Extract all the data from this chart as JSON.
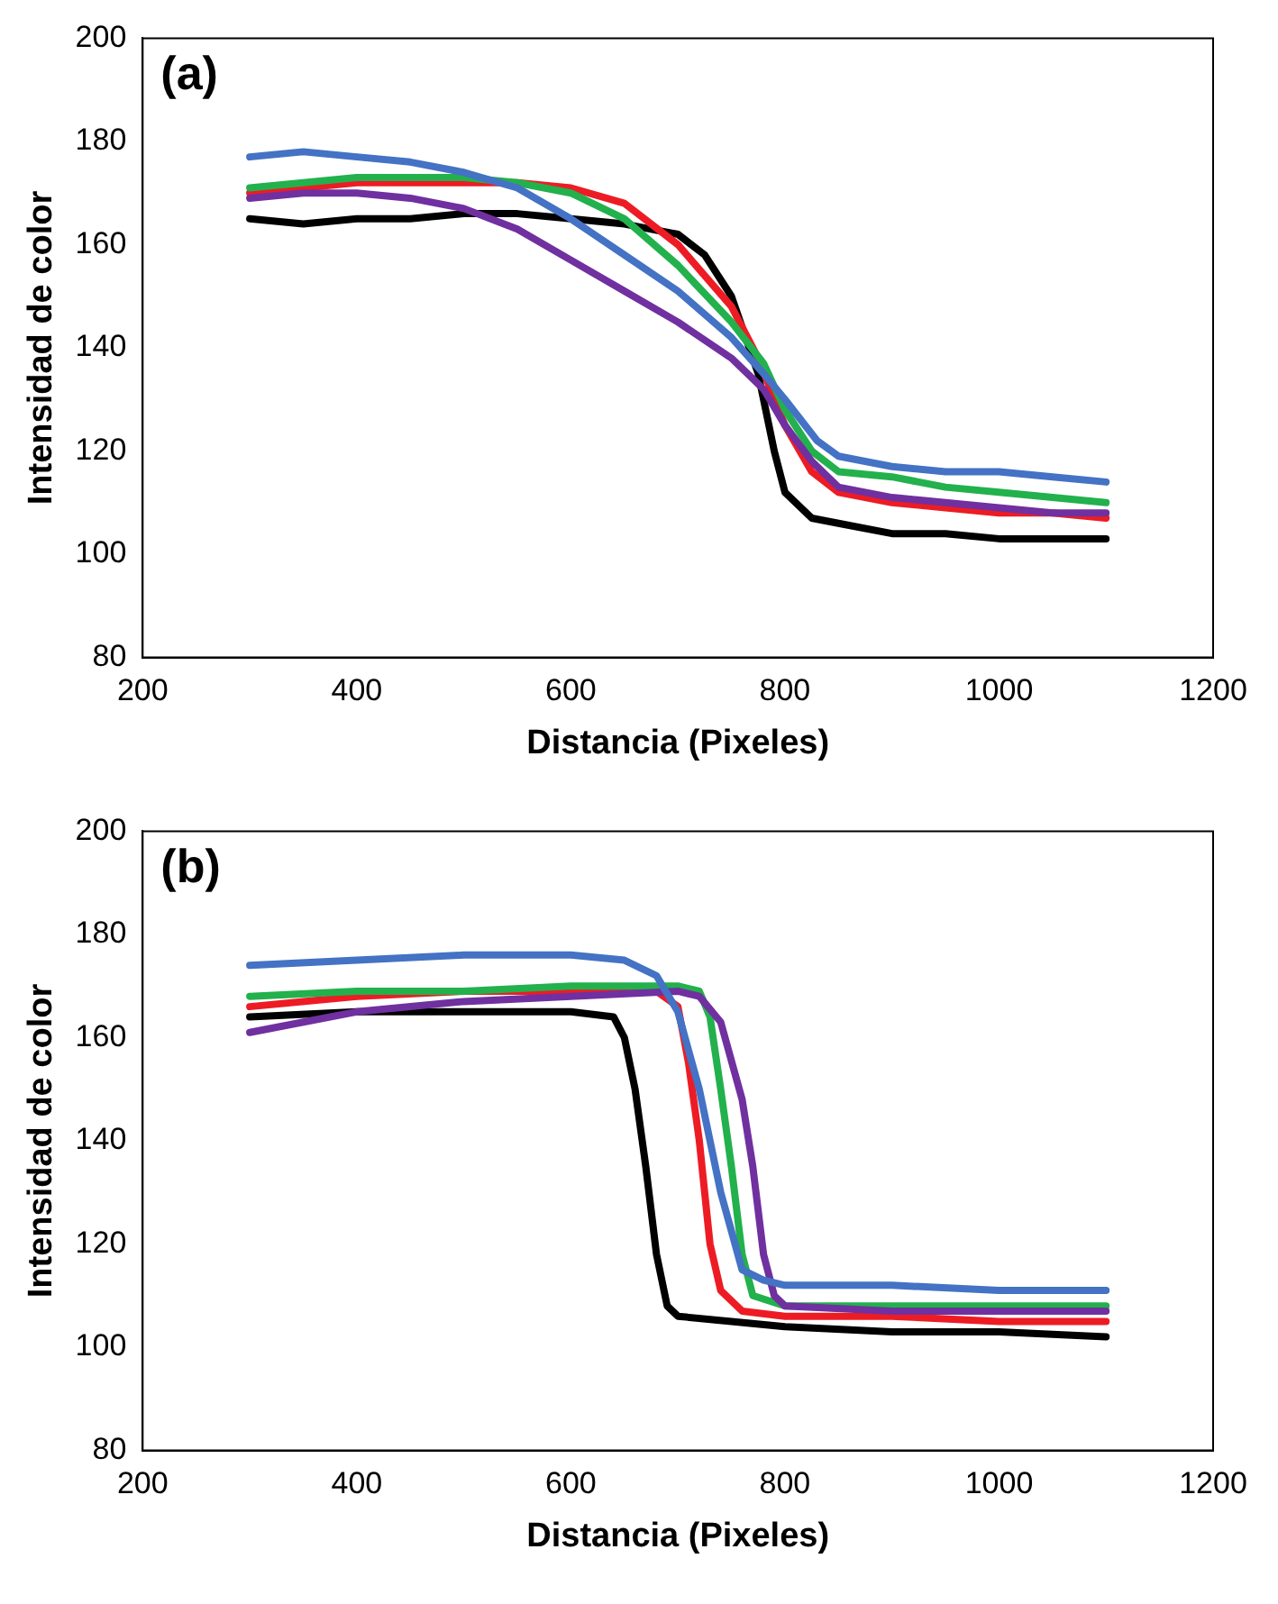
{
  "chart_data": [
    {
      "type": "line",
      "xlabel": "Distancia (Pixeles)",
      "ylabel": "Intensidad de color",
      "annotations": [
        "(a)"
      ],
      "xlim": [
        200,
        1200
      ],
      "xticks": [
        200,
        400,
        600,
        800,
        1000,
        1200
      ],
      "ylim": [
        80,
        200
      ],
      "yticks": [
        80,
        100,
        120,
        140,
        160,
        180,
        200
      ],
      "grid": false,
      "legend": false,
      "marker": "none",
      "line_style": "solid",
      "series": [
        {
          "color": "#000000",
          "x": [
            300,
            350,
            400,
            450,
            500,
            550,
            600,
            650,
            700,
            725,
            750,
            775,
            790,
            800,
            825,
            850,
            900,
            950,
            1000,
            1050,
            1100
          ],
          "values": [
            165,
            164,
            165,
            165,
            166,
            166,
            165,
            164,
            162,
            158,
            150,
            135,
            120,
            112,
            107,
            106,
            104,
            104,
            103,
            103,
            103
          ]
        },
        {
          "color": "#ed1c24",
          "x": [
            300,
            400,
            500,
            550,
            600,
            650,
            700,
            750,
            775,
            800,
            825,
            850,
            900,
            950,
            1000,
            1050,
            1100
          ],
          "values": [
            170,
            172,
            172,
            172,
            171,
            168,
            160,
            148,
            138,
            125,
            116,
            112,
            110,
            109,
            108,
            108,
            107
          ]
        },
        {
          "color": "#22b14c",
          "x": [
            300,
            400,
            500,
            550,
            600,
            650,
            700,
            750,
            780,
            800,
            825,
            850,
            900,
            950,
            1000,
            1050,
            1100
          ],
          "values": [
            171,
            173,
            173,
            172,
            170,
            165,
            156,
            145,
            137,
            128,
            120,
            116,
            115,
            113,
            112,
            111,
            110
          ]
        },
        {
          "color": "#7030a0",
          "x": [
            300,
            350,
            400,
            450,
            500,
            550,
            600,
            650,
            700,
            750,
            780,
            800,
            825,
            850,
            900,
            950,
            1000,
            1050,
            1100
          ],
          "values": [
            169,
            170,
            170,
            169,
            167,
            163,
            157,
            151,
            145,
            138,
            132,
            125,
            118,
            113,
            111,
            110,
            109,
            108,
            108
          ]
        },
        {
          "color": "#4472c4",
          "x": [
            300,
            350,
            400,
            450,
            500,
            550,
            600,
            650,
            700,
            750,
            780,
            800,
            830,
            850,
            900,
            950,
            1000,
            1050,
            1100
          ],
          "values": [
            177,
            178,
            177,
            176,
            174,
            171,
            165,
            158,
            151,
            142,
            135,
            130,
            122,
            119,
            117,
            116,
            116,
            115,
            114
          ]
        }
      ]
    },
    {
      "type": "line",
      "xlabel": "Distancia (Pixeles)",
      "ylabel": "Intensidad de color",
      "annotations": [
        "(b)"
      ],
      "xlim": [
        200,
        1200
      ],
      "xticks": [
        200,
        400,
        600,
        800,
        1000,
        1200
      ],
      "ylim": [
        80,
        200
      ],
      "yticks": [
        80,
        100,
        120,
        140,
        160,
        180,
        200
      ],
      "grid": false,
      "legend": false,
      "marker": "none",
      "line_style": "solid",
      "series": [
        {
          "color": "#000000",
          "x": [
            300,
            400,
            500,
            600,
            640,
            650,
            660,
            670,
            680,
            690,
            700,
            750,
            800,
            900,
            1000,
            1100
          ],
          "values": [
            164,
            165,
            165,
            165,
            164,
            160,
            150,
            135,
            118,
            108,
            106,
            105,
            104,
            103,
            103,
            102
          ]
        },
        {
          "color": "#ed1c24",
          "x": [
            300,
            400,
            500,
            600,
            680,
            700,
            710,
            720,
            730,
            740,
            760,
            800,
            900,
            1000,
            1100
          ],
          "values": [
            166,
            168,
            169,
            169,
            169,
            166,
            155,
            140,
            120,
            111,
            107,
            106,
            106,
            105,
            105
          ]
        },
        {
          "color": "#22b14c",
          "x": [
            300,
            400,
            500,
            600,
            700,
            720,
            730,
            740,
            750,
            760,
            770,
            800,
            900,
            1000,
            1100
          ],
          "values": [
            168,
            169,
            169,
            170,
            170,
            169,
            164,
            150,
            135,
            118,
            110,
            108,
            108,
            108,
            108
          ]
        },
        {
          "color": "#7030a0",
          "x": [
            300,
            350,
            400,
            500,
            600,
            700,
            720,
            740,
            760,
            770,
            780,
            790,
            800,
            900,
            1000,
            1100
          ],
          "values": [
            161,
            163,
            165,
            167,
            168,
            169,
            168,
            163,
            148,
            135,
            118,
            110,
            108,
            107,
            107,
            107
          ]
        },
        {
          "color": "#4472c4",
          "x": [
            300,
            400,
            500,
            600,
            650,
            680,
            700,
            720,
            740,
            760,
            780,
            800,
            900,
            1000,
            1100
          ],
          "values": [
            174,
            175,
            176,
            176,
            175,
            172,
            165,
            150,
            130,
            115,
            113,
            112,
            112,
            111,
            111
          ]
        }
      ]
    }
  ]
}
